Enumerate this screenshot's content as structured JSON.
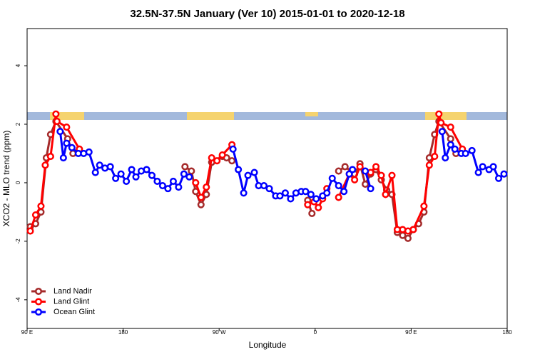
{
  "chart_data": {
    "type": "line",
    "title": "32.5N-37.5N January (Ver 10)   2015-01-01 to 2020-12-18",
    "xlabel": "Longitude",
    "ylabel": "XCO2 - MLO trend (ppm)",
    "xlim": [
      90,
      540
    ],
    "ylim": [
      -4.98,
      5.27
    ],
    "xticks": [
      {
        "value": 90,
        "label": "90 E"
      },
      180,
      {
        "value": 270,
        "label": "90 W"
      },
      {
        "value": 360,
        "label": "0"
      },
      {
        "value": 450,
        "label": "90 E"
      },
      {
        "value": 540,
        "label": "180"
      }
    ],
    "yticks": [
      -4,
      -2,
      0,
      2,
      4
    ],
    "legend": "lower left",
    "series": [
      {
        "name": "Land Nadir",
        "color": "#a52a2a",
        "x": [
          93,
          98,
          103,
          108,
          112,
          117,
          128,
          133,
          185,
          238,
          244,
          248,
          253,
          258,
          263,
          273,
          277,
          282,
          318,
          353,
          357,
          370,
          382,
          388,
          397,
          402,
          407,
          412,
          417,
          422,
          427,
          432,
          437,
          442,
          447,
          452,
          457,
          462,
          467,
          472,
          476,
          487,
          492
        ],
        "values": [
          -1.5,
          -1.4,
          -1.0,
          0.85,
          1.65,
          2.1,
          1.5,
          1.0,
          null,
          0.55,
          0.4,
          -0.3,
          -0.75,
          -0.4,
          0.7,
          0.9,
          0.85,
          0.75,
          null,
          -0.6,
          -1.05,
          null,
          0.4,
          0.55,
          0.3,
          0.65,
          -0.05,
          0.3,
          0.45,
          0.1,
          -0.25,
          -0.4,
          -1.7,
          -1.8,
          -1.9,
          -1.6,
          -1.4,
          -1.0,
          0.85,
          1.65,
          2.1,
          1.5,
          1.0
        ]
      },
      {
        "name": "Land Glint",
        "color": "#ff0000",
        "x": [
          93,
          98,
          103,
          107,
          112,
          117,
          118,
          127,
          139,
          190,
          248,
          253,
          258,
          263,
          268,
          273,
          282,
          318,
          353,
          359,
          363,
          367,
          371,
          376,
          382,
          392,
          397,
          402,
          412,
          417,
          422,
          426,
          432,
          437,
          442,
          447,
          452,
          462,
          467,
          472,
          476,
          478,
          487,
          498
        ],
        "values": [
          -1.65,
          -1.1,
          -0.8,
          0.6,
          0.9,
          2.35,
          2.1,
          1.9,
          1.15,
          null,
          0.0,
          -0.5,
          -0.15,
          0.85,
          0.75,
          0.95,
          1.3,
          null,
          -0.75,
          -0.65,
          -0.85,
          -0.55,
          -0.2,
          null,
          -0.5,
          0.3,
          0.1,
          0.55,
          0.35,
          0.55,
          0.25,
          -0.4,
          0.25,
          -1.6,
          -1.6,
          -1.65,
          -1.6,
          -0.8,
          0.6,
          0.9,
          2.35,
          2.05,
          1.9,
          1.15
        ]
      },
      {
        "name": "Ocean Glint",
        "color": "#0000ff",
        "x": [
          121,
          124,
          127,
          132,
          138,
          143,
          148,
          154,
          158,
          163,
          168,
          173,
          178,
          183,
          188,
          192,
          197,
          202,
          207,
          212,
          217,
          222,
          227,
          232,
          237,
          242,
          262,
          283,
          288,
          293,
          297,
          303,
          307,
          312,
          317,
          323,
          327,
          332,
          337,
          342,
          347,
          351,
          356,
          361,
          367,
          371,
          376,
          382,
          387,
          392,
          395,
          401,
          407,
          412,
          445,
          479,
          482,
          487,
          491,
          497,
          501,
          507,
          513,
          517,
          523,
          527,
          532,
          537
        ],
        "values": [
          1.75,
          0.85,
          1.35,
          1.2,
          1.0,
          1.0,
          1.05,
          0.35,
          0.6,
          0.5,
          0.55,
          0.15,
          0.3,
          0.05,
          0.45,
          0.2,
          0.4,
          0.45,
          0.25,
          0.05,
          -0.1,
          -0.2,
          0.05,
          -0.15,
          0.3,
          0.2,
          null,
          1.15,
          0.45,
          -0.35,
          0.25,
          0.35,
          -0.1,
          -0.1,
          -0.2,
          -0.45,
          -0.45,
          -0.35,
          -0.55,
          -0.35,
          -0.3,
          -0.3,
          -0.4,
          -0.55,
          -0.45,
          -0.35,
          0.15,
          -0.1,
          -0.3,
          0.3,
          0.45,
          null,
          0.4,
          -0.2,
          null,
          1.75,
          0.85,
          1.3,
          1.15,
          1.0,
          1.0,
          1.1,
          0.35,
          0.55,
          0.45,
          0.55,
          0.15,
          0.3
        ]
      }
    ]
  }
}
